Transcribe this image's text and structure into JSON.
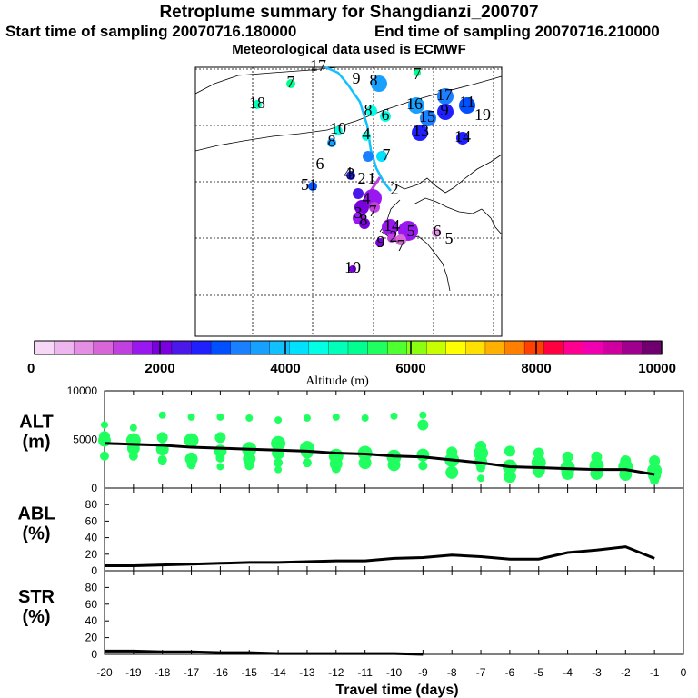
{
  "header": {
    "title": "Retroplume summary for Shangdianzi_200707",
    "start_label": "Start time of sampling 20070716.180000",
    "end_label": "End time of sampling 20070716.210000",
    "met_label": "Meteorological data used is ECMWF"
  },
  "colorbar": {
    "label": "Altitude (m)",
    "tick_labels": [
      "0",
      "2000",
      "4000",
      "6000",
      "8000",
      "10000"
    ],
    "colors": [
      "#f6d8f6",
      "#eeb6ee",
      "#e48ee4",
      "#d866d8",
      "#c040e0",
      "#9a18f0",
      "#7a00e0",
      "#4a18e8",
      "#2020ff",
      "#0050ff",
      "#1a80ff",
      "#18a0ff",
      "#10c0ff",
      "#00e0ff",
      "#00ffe4",
      "#00ffb8",
      "#00ff90",
      "#20ff60",
      "#50ff30",
      "#8cff10",
      "#c8ff00",
      "#ffff00",
      "#ffe000",
      "#ffb000",
      "#ff8000",
      "#ff4000",
      "#ff0040",
      "#ff0090",
      "#f000b0",
      "#d000a0",
      "#a00090",
      "#700070"
    ]
  },
  "map": {
    "particle_labels": [
      {
        "text": "17",
        "color": "#00e0ff"
      },
      {
        "text": "7",
        "color": "#00ff90"
      },
      {
        "text": "7",
        "color": "#00ff90"
      },
      {
        "text": "9",
        "color": "#18a0ff"
      },
      {
        "text": "8",
        "color": "#18a0ff"
      },
      {
        "text": "18",
        "color": "#00ffb8"
      },
      {
        "text": "16",
        "color": "#18a0ff"
      },
      {
        "text": "17",
        "color": "#1a80ff"
      },
      {
        "text": "11",
        "color": "#0050ff"
      },
      {
        "text": "19",
        "color": "#2020ff"
      },
      {
        "text": "15",
        "color": "#1a80ff"
      },
      {
        "text": "9",
        "color": "#2020ff"
      },
      {
        "text": "6",
        "color": "#00ffe4"
      },
      {
        "text": "8",
        "color": "#00ffe4"
      },
      {
        "text": "13",
        "color": "#2020ff"
      },
      {
        "text": "14",
        "color": "#2020ff"
      },
      {
        "text": "10",
        "color": "#00ffe4"
      },
      {
        "text": "8",
        "color": "#18a0ff"
      },
      {
        "text": "4",
        "color": "#00ffe4"
      },
      {
        "text": "7",
        "color": "#1a80ff"
      },
      {
        "text": "6",
        "color": "#00ffe4"
      },
      {
        "text": "4",
        "color": "#00ffe4"
      },
      {
        "text": "51",
        "color": "#0050ff"
      },
      {
        "text": "3",
        "color": "#2020ff"
      },
      {
        "text": "2",
        "color": "#4a18e8"
      },
      {
        "text": "1",
        "color": "#7a00e0"
      },
      {
        "text": "2",
        "color": "#9a18f0"
      },
      {
        "text": "4",
        "color": "#4a18e8"
      },
      {
        "text": "3",
        "color": "#7a00e0"
      },
      {
        "text": "7",
        "color": "#9a18f0"
      },
      {
        "text": "8",
        "color": "#9a18f0"
      },
      {
        "text": "14",
        "color": "#9a18f0"
      },
      {
        "text": "5",
        "color": "#9a18f0"
      },
      {
        "text": "6",
        "color": "#e48ee4"
      },
      {
        "text": "5",
        "color": "#e48ee4"
      },
      {
        "text": "9",
        "color": "#7a00e0"
      },
      {
        "text": "2",
        "color": "#9a18f0"
      },
      {
        "text": "7",
        "color": "#d866d8"
      },
      {
        "text": "10",
        "color": "#7a00e0"
      }
    ]
  },
  "chart_data": [
    {
      "type": "scatter",
      "name": "ALT",
      "ylabel_lines": [
        "ALT",
        "(m)"
      ],
      "ylim": [
        0,
        10000
      ],
      "yticks": [
        "0",
        "5000",
        "10000"
      ],
      "xlim": [
        -20,
        0
      ],
      "median_line": {
        "x": [
          -20,
          -19,
          -18,
          -17,
          -16,
          -15,
          -14,
          -13,
          -12,
          -11,
          -10,
          -9,
          -8,
          -7,
          -6,
          -5,
          -4,
          -3,
          -2,
          -1
        ],
        "y": [
          4600,
          4500,
          4400,
          4200,
          4100,
          4000,
          3900,
          3800,
          3600,
          3500,
          3300,
          3200,
          2900,
          2600,
          2200,
          2100,
          2000,
          1900,
          1900,
          1400
        ]
      },
      "points_color": "#20ff60",
      "points": [
        {
          "x": -20,
          "y": [
            6500,
            5300,
            4900,
            3300
          ]
        },
        {
          "x": -19,
          "y": [
            6200,
            4900,
            4100,
            3300
          ]
        },
        {
          "x": -18,
          "y": [
            7500,
            5200,
            4000,
            2900,
            2700
          ]
        },
        {
          "x": -17,
          "y": [
            7300,
            4900,
            3000,
            2400
          ]
        },
        {
          "x": -16,
          "y": [
            7300,
            5200,
            3800,
            3100,
            2200
          ]
        },
        {
          "x": -15,
          "y": [
            7200,
            4000,
            3000,
            2300
          ]
        },
        {
          "x": -14,
          "y": [
            7000,
            4600,
            3600,
            2600,
            1900
          ]
        },
        {
          "x": -13,
          "y": [
            7200,
            4100,
            3700,
            2600
          ]
        },
        {
          "x": -12,
          "y": [
            7300,
            3300,
            2500,
            2000
          ]
        },
        {
          "x": -11,
          "y": [
            7200,
            3600,
            2600
          ]
        },
        {
          "x": -10,
          "y": [
            7400,
            3200,
            2400
          ]
        },
        {
          "x": -9,
          "y": [
            7500,
            6500,
            3400,
            2300
          ]
        },
        {
          "x": -8,
          "y": [
            3700,
            2900,
            1600
          ]
        },
        {
          "x": -7,
          "y": [
            4300,
            3600,
            2700,
            2100,
            1000
          ]
        },
        {
          "x": -6,
          "y": [
            3800,
            2200,
            1200
          ]
        },
        {
          "x": -5,
          "y": [
            3600,
            2600,
            1800,
            1500
          ]
        },
        {
          "x": -4,
          "y": [
            3200,
            2100,
            1500
          ]
        },
        {
          "x": -3,
          "y": [
            3200,
            2300,
            1500
          ]
        },
        {
          "x": -2,
          "y": [
            2800,
            2200,
            1400
          ]
        },
        {
          "x": -1,
          "y": [
            2800,
            1800,
            1300,
            800
          ]
        }
      ]
    },
    {
      "type": "line",
      "name": "ABL",
      "ylabel_lines": [
        "ABL",
        "(%)"
      ],
      "ylim": [
        0,
        100
      ],
      "yticks": [
        "0",
        "20",
        "40",
        "60",
        "80"
      ],
      "xlim": [
        -20,
        0
      ],
      "x": [
        -20,
        -19,
        -18,
        -17,
        -16,
        -15,
        -14,
        -13,
        -12,
        -11,
        -10,
        -9,
        -8,
        -7,
        -6,
        -5,
        -4,
        -3,
        -2,
        -1
      ],
      "y": [
        6,
        6,
        7,
        8,
        9,
        10,
        10,
        11,
        12,
        12,
        15,
        16,
        19,
        17,
        14,
        14,
        22,
        25,
        29,
        15
      ]
    },
    {
      "type": "line",
      "name": "STR",
      "ylabel_lines": [
        "STR",
        "(%)"
      ],
      "ylim": [
        0,
        100
      ],
      "yticks": [
        "0",
        "20",
        "40",
        "60",
        "80"
      ],
      "xlim": [
        -20,
        0
      ],
      "x": [
        -20,
        -19,
        -18,
        -17,
        -16,
        -15,
        -14,
        -13,
        -12,
        -11,
        -10,
        -9
      ],
      "y": [
        4,
        4,
        3,
        3,
        2,
        2,
        1,
        1,
        1,
        1,
        1,
        0
      ],
      "xlabel": "Travel time (days)",
      "xtick_labels": [
        "-20",
        "-19",
        "-18",
        "-17",
        "-16",
        "-15",
        "-14",
        "-13",
        "-12",
        "-11",
        "-10",
        "-9",
        "-8",
        "-7",
        "-6",
        "-5",
        "-4",
        "-3",
        "-2",
        "-1",
        "0"
      ]
    }
  ]
}
